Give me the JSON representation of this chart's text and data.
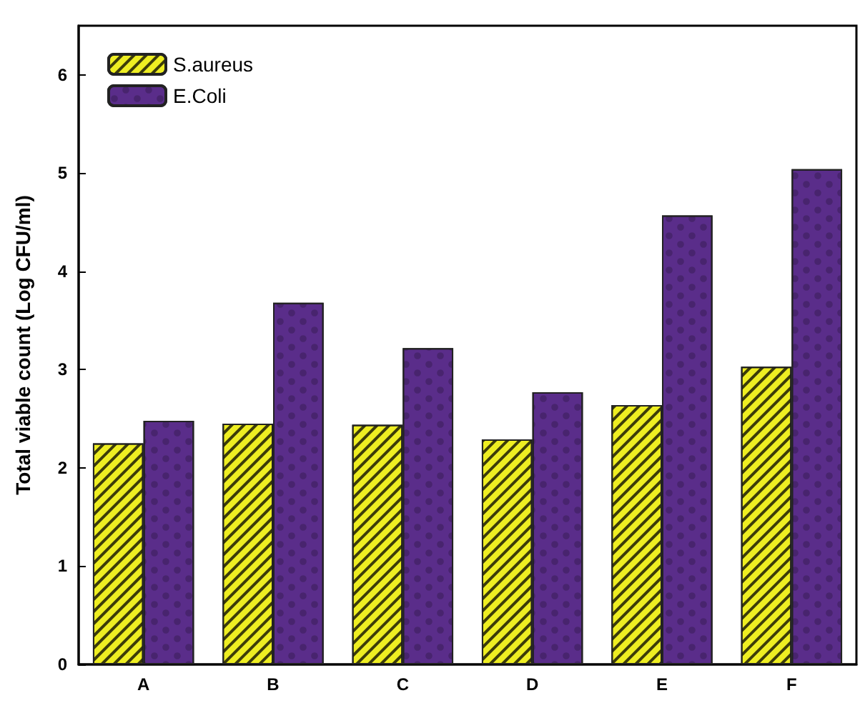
{
  "chart_data": {
    "type": "bar",
    "ylabel": "Total viable count (Log CFU/ml)",
    "categories": [
      "A",
      "B",
      "C",
      "D",
      "E",
      "F"
    ],
    "series": [
      {
        "name": "S.aureus",
        "color": "#eeee22",
        "values": [
          2.25,
          2.45,
          2.44,
          2.29,
          2.64,
          3.03
        ]
      },
      {
        "name": "E.Coli",
        "color": "#5a2d8a",
        "values": [
          2.48,
          3.68,
          3.22,
          2.77,
          4.57,
          5.04
        ]
      }
    ],
    "ylim": [
      0,
      6.5
    ],
    "yticks": [
      0,
      1,
      2,
      3,
      4,
      5,
      6
    ],
    "grid": false,
    "legend": "top left"
  }
}
